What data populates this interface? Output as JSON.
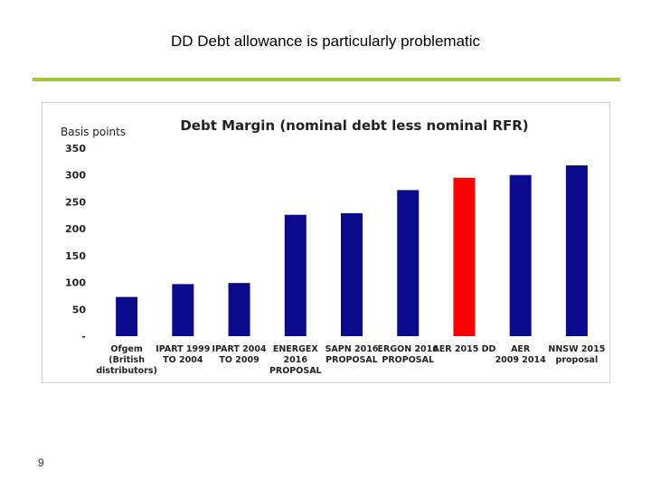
{
  "slide": {
    "title": "DD Debt allowance is particularly problematic",
    "page_number": "9",
    "accent_color": "#a5c53a"
  },
  "chart_data": {
    "type": "bar",
    "title": "Debt Margin (nominal debt less nominal RFR)",
    "ylabel": "Basis points",
    "xlabel": "",
    "ylim": [
      0,
      350
    ],
    "yticks": [
      0,
      50,
      100,
      150,
      200,
      250,
      300,
      350
    ],
    "ytick_labels": [
      "-",
      "50",
      "100",
      "150",
      "200",
      "250",
      "300",
      "350"
    ],
    "grid": false,
    "legend": "none",
    "bar_color": "#0a0a8c",
    "highlight_color": "#ff0000",
    "categories": [
      [
        "Ofgem",
        "(British",
        "distributors)"
      ],
      [
        "IPART 1999",
        "TO 2004"
      ],
      [
        "IPART 2004",
        "TO 2009"
      ],
      [
        "ENERGEX",
        "2016",
        "PROPOSAL"
      ],
      [
        "SAPN 2016",
        "PROPOSAL"
      ],
      [
        "ERGON 2016",
        "PROPOSAL"
      ],
      [
        "AER 2015 DD"
      ],
      [
        "AER",
        "2009 2014"
      ],
      [
        "NNSW 2015",
        "proposal"
      ]
    ],
    "values": [
      73,
      97,
      99,
      226,
      229,
      272,
      295,
      300,
      318
    ],
    "highlighted": [
      false,
      false,
      false,
      false,
      false,
      false,
      true,
      false,
      false
    ]
  }
}
